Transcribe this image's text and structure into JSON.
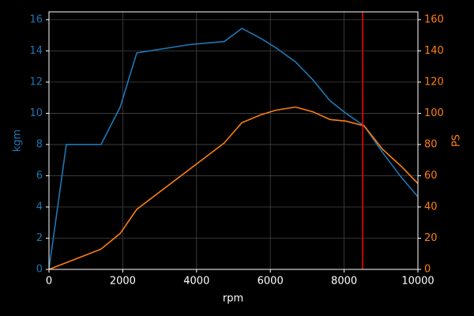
{
  "chart_data": {
    "type": "line",
    "x_label": "rpm",
    "y_label": "kgm",
    "y2_label": "PS",
    "xlim": [
      0,
      10000
    ],
    "xticks": [
      0,
      2000,
      4000,
      6000,
      8000,
      10000
    ],
    "ylim": [
      0,
      16.5
    ],
    "yticks": [
      0,
      2,
      4,
      6,
      8,
      10,
      12,
      14,
      16
    ],
    "y2lim": [
      0,
      165
    ],
    "y2ticks": [
      0,
      20,
      40,
      60,
      80,
      100,
      120,
      140,
      160
    ],
    "grid": true,
    "vline": {
      "x": 8500,
      "color": "#ff0000"
    },
    "series": [
      {
        "name": "kgm",
        "color": "#1f77b4",
        "x": [
          0,
          470,
          1410,
          1930,
          2380,
          3800,
          4750,
          5230,
          5740,
          6150,
          6680,
          7150,
          7620,
          8050,
          8540,
          9040,
          9550,
          10000
        ],
        "values": [
          0,
          8.0,
          8.0,
          10.4,
          13.87,
          14.4,
          14.6,
          15.44,
          14.8,
          14.2,
          13.3,
          12.15,
          10.8,
          10.0,
          9.2,
          7.5,
          5.9,
          4.65
        ]
      },
      {
        "name": "PS",
        "color": "#ff7f0e",
        "axis": "y2",
        "x": [
          0,
          1410,
          1930,
          2380,
          4750,
          5230,
          5740,
          6150,
          6680,
          7150,
          7620,
          8050,
          8540,
          9040,
          9550,
          10000
        ],
        "values": [
          0,
          13,
          23,
          38.5,
          81,
          94,
          99,
          102,
          104,
          101,
          96,
          95,
          92,
          77,
          66,
          55
        ]
      }
    ]
  }
}
